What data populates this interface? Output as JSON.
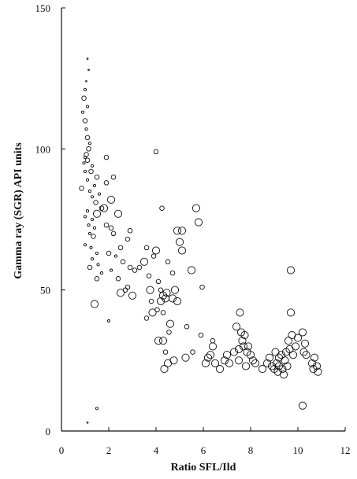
{
  "chart_data": {
    "type": "scatter",
    "xlabel": "Ratio SFL/Ild",
    "ylabel": "Gamma ray  (SGR)  API units",
    "xlim": [
      0,
      12
    ],
    "ylim": [
      0,
      150
    ],
    "x_ticks": [
      0,
      2,
      4,
      6,
      8,
      10,
      12
    ],
    "y_ticks": [
      0,
      50,
      100,
      150
    ],
    "x_tick_labels": [
      "0",
      "2",
      "4",
      "6",
      "8",
      "10",
      "12"
    ],
    "y_tick_labels": [
      "0",
      "50",
      "100",
      "150"
    ],
    "grid": false,
    "legend": false,
    "marker": "open-circle (size varies)",
    "points": [
      {
        "x": 1.1,
        "y": 132,
        "s": 1
      },
      {
        "x": 1.15,
        "y": 128,
        "s": 1
      },
      {
        "x": 1.05,
        "y": 124,
        "s": 1
      },
      {
        "x": 1.0,
        "y": 121,
        "s": 2
      },
      {
        "x": 0.95,
        "y": 118,
        "s": 3
      },
      {
        "x": 1.1,
        "y": 115,
        "s": 2
      },
      {
        "x": 0.9,
        "y": 113,
        "s": 2
      },
      {
        "x": 1.0,
        "y": 110,
        "s": 3
      },
      {
        "x": 1.05,
        "y": 107,
        "s": 2
      },
      {
        "x": 1.1,
        "y": 104,
        "s": 3
      },
      {
        "x": 1.2,
        "y": 102,
        "s": 2
      },
      {
        "x": 1.15,
        "y": 100,
        "s": 3
      },
      {
        "x": 1.05,
        "y": 98,
        "s": 3
      },
      {
        "x": 1.0,
        "y": 97,
        "s": 2
      },
      {
        "x": 1.1,
        "y": 96,
        "s": 3
      },
      {
        "x": 0.95,
        "y": 95,
        "s": 2
      },
      {
        "x": 1.3,
        "y": 94,
        "s": 2
      },
      {
        "x": 1.0,
        "y": 92,
        "s": 2
      },
      {
        "x": 1.25,
        "y": 92,
        "s": 3
      },
      {
        "x": 1.5,
        "y": 90,
        "s": 3
      },
      {
        "x": 1.1,
        "y": 89,
        "s": 2
      },
      {
        "x": 1.4,
        "y": 87,
        "s": 2
      },
      {
        "x": 0.85,
        "y": 86,
        "s": 3
      },
      {
        "x": 1.2,
        "y": 85,
        "s": 2
      },
      {
        "x": 1.6,
        "y": 84,
        "s": 2
      },
      {
        "x": 1.3,
        "y": 83,
        "s": 2
      },
      {
        "x": 1.45,
        "y": 81,
        "s": 3
      },
      {
        "x": 1.7,
        "y": 79,
        "s": 3
      },
      {
        "x": 1.1,
        "y": 78,
        "s": 2
      },
      {
        "x": 1.5,
        "y": 77,
        "s": 4
      },
      {
        "x": 1.0,
        "y": 76,
        "s": 2
      },
      {
        "x": 1.3,
        "y": 75,
        "s": 2
      },
      {
        "x": 1.15,
        "y": 73,
        "s": 2
      },
      {
        "x": 1.4,
        "y": 72,
        "s": 2
      },
      {
        "x": 1.2,
        "y": 70,
        "s": 2
      },
      {
        "x": 1.35,
        "y": 69,
        "s": 3
      },
      {
        "x": 1.0,
        "y": 66,
        "s": 2
      },
      {
        "x": 1.25,
        "y": 65,
        "s": 2
      },
      {
        "x": 1.5,
        "y": 63,
        "s": 2
      },
      {
        "x": 1.3,
        "y": 61,
        "s": 2
      },
      {
        "x": 1.55,
        "y": 59,
        "s": 2
      },
      {
        "x": 1.2,
        "y": 58,
        "s": 3
      },
      {
        "x": 1.7,
        "y": 56,
        "s": 2
      },
      {
        "x": 1.5,
        "y": 54,
        "s": 3
      },
      {
        "x": 1.4,
        "y": 45,
        "s": 4
      },
      {
        "x": 1.5,
        "y": 8,
        "s": 2
      },
      {
        "x": 1.1,
        "y": 3,
        "s": 1
      },
      {
        "x": 1.9,
        "y": 97,
        "s": 3
      },
      {
        "x": 2.2,
        "y": 90,
        "s": 3
      },
      {
        "x": 1.9,
        "y": 88,
        "s": 3
      },
      {
        "x": 2.1,
        "y": 82,
        "s": 4
      },
      {
        "x": 1.8,
        "y": 79,
        "s": 4
      },
      {
        "x": 2.4,
        "y": 77,
        "s": 4
      },
      {
        "x": 1.9,
        "y": 73,
        "s": 3
      },
      {
        "x": 2.1,
        "y": 72,
        "s": 3
      },
      {
        "x": 2.2,
        "y": 70,
        "s": 3
      },
      {
        "x": 2.5,
        "y": 65,
        "s": 3
      },
      {
        "x": 2.0,
        "y": 63,
        "s": 3
      },
      {
        "x": 2.3,
        "y": 62,
        "s": 2
      },
      {
        "x": 2.6,
        "y": 60,
        "s": 3
      },
      {
        "x": 2.9,
        "y": 58,
        "s": 3
      },
      {
        "x": 2.1,
        "y": 57,
        "s": 2
      },
      {
        "x": 2.4,
        "y": 54,
        "s": 3
      },
      {
        "x": 2.8,
        "y": 51,
        "s": 3
      },
      {
        "x": 2.5,
        "y": 49,
        "s": 4
      },
      {
        "x": 2.0,
        "y": 39,
        "s": 2
      },
      {
        "x": 2.7,
        "y": 50,
        "s": 3
      },
      {
        "x": 2.9,
        "y": 71,
        "s": 3
      },
      {
        "x": 2.8,
        "y": 68,
        "s": 3
      },
      {
        "x": 3.0,
        "y": 48,
        "s": 4
      },
      {
        "x": 3.1,
        "y": 57,
        "s": 3
      },
      {
        "x": 3.3,
        "y": 58,
        "s": 3
      },
      {
        "x": 3.5,
        "y": 60,
        "s": 4
      },
      {
        "x": 3.6,
        "y": 65,
        "s": 3
      },
      {
        "x": 3.7,
        "y": 55,
        "s": 3
      },
      {
        "x": 3.6,
        "y": 40,
        "s": 3
      },
      {
        "x": 3.75,
        "y": 50,
        "s": 4
      },
      {
        "x": 3.8,
        "y": 46,
        "s": 3
      },
      {
        "x": 3.85,
        "y": 42,
        "s": 4
      },
      {
        "x": 3.9,
        "y": 62,
        "s": 3
      },
      {
        "x": 4.0,
        "y": 64,
        "s": 4
      },
      {
        "x": 4.0,
        "y": 99,
        "s": 3
      },
      {
        "x": 4.05,
        "y": 43,
        "s": 3
      },
      {
        "x": 4.1,
        "y": 53,
        "s": 3
      },
      {
        "x": 4.1,
        "y": 32,
        "s": 4
      },
      {
        "x": 4.2,
        "y": 50,
        "s": 3
      },
      {
        "x": 4.2,
        "y": 46,
        "s": 4
      },
      {
        "x": 4.25,
        "y": 79,
        "s": 3
      },
      {
        "x": 4.3,
        "y": 48,
        "s": 4
      },
      {
        "x": 4.3,
        "y": 42,
        "s": 3
      },
      {
        "x": 4.3,
        "y": 32,
        "s": 4
      },
      {
        "x": 4.35,
        "y": 22,
        "s": 4
      },
      {
        "x": 4.4,
        "y": 47,
        "s": 4
      },
      {
        "x": 4.4,
        "y": 28,
        "s": 3
      },
      {
        "x": 4.45,
        "y": 49,
        "s": 4
      },
      {
        "x": 4.5,
        "y": 60,
        "s": 3
      },
      {
        "x": 4.5,
        "y": 24,
        "s": 4
      },
      {
        "x": 4.55,
        "y": 35,
        "s": 3
      },
      {
        "x": 4.6,
        "y": 38,
        "s": 4
      },
      {
        "x": 4.7,
        "y": 56,
        "s": 3
      },
      {
        "x": 4.7,
        "y": 47,
        "s": 4
      },
      {
        "x": 4.75,
        "y": 25,
        "s": 4
      },
      {
        "x": 4.8,
        "y": 50,
        "s": 4
      },
      {
        "x": 4.9,
        "y": 71,
        "s": 4
      },
      {
        "x": 4.9,
        "y": 46,
        "s": 4
      },
      {
        "x": 5.0,
        "y": 67,
        "s": 4
      },
      {
        "x": 5.1,
        "y": 64,
        "s": 4
      },
      {
        "x": 5.1,
        "y": 71,
        "s": 4
      },
      {
        "x": 5.3,
        "y": 37,
        "s": 3
      },
      {
        "x": 5.25,
        "y": 26,
        "s": 4
      },
      {
        "x": 5.5,
        "y": 57,
        "s": 4
      },
      {
        "x": 5.55,
        "y": 28,
        "s": 3
      },
      {
        "x": 5.7,
        "y": 79,
        "s": 4
      },
      {
        "x": 5.8,
        "y": 74,
        "s": 4
      },
      {
        "x": 5.95,
        "y": 51,
        "s": 3
      },
      {
        "x": 5.9,
        "y": 34,
        "s": 3
      },
      {
        "x": 6.1,
        "y": 24,
        "s": 4
      },
      {
        "x": 6.2,
        "y": 26,
        "s": 4
      },
      {
        "x": 6.3,
        "y": 27,
        "s": 4
      },
      {
        "x": 6.4,
        "y": 30,
        "s": 4
      },
      {
        "x": 6.4,
        "y": 32,
        "s": 3
      },
      {
        "x": 6.5,
        "y": 24,
        "s": 4
      },
      {
        "x": 6.7,
        "y": 22,
        "s": 4
      },
      {
        "x": 6.9,
        "y": 25,
        "s": 4
      },
      {
        "x": 7.0,
        "y": 27,
        "s": 4
      },
      {
        "x": 7.1,
        "y": 24,
        "s": 4
      },
      {
        "x": 7.3,
        "y": 28,
        "s": 4
      },
      {
        "x": 7.4,
        "y": 37,
        "s": 4
      },
      {
        "x": 7.5,
        "y": 25,
        "s": 4
      },
      {
        "x": 7.5,
        "y": 29,
        "s": 4
      },
      {
        "x": 7.55,
        "y": 42,
        "s": 4
      },
      {
        "x": 7.6,
        "y": 35,
        "s": 4
      },
      {
        "x": 7.65,
        "y": 32,
        "s": 4
      },
      {
        "x": 7.7,
        "y": 30,
        "s": 4
      },
      {
        "x": 7.75,
        "y": 34,
        "s": 4
      },
      {
        "x": 7.8,
        "y": 23,
        "s": 4
      },
      {
        "x": 7.85,
        "y": 28,
        "s": 4
      },
      {
        "x": 7.9,
        "y": 30,
        "s": 4
      },
      {
        "x": 8.0,
        "y": 27,
        "s": 4
      },
      {
        "x": 8.1,
        "y": 25,
        "s": 4
      },
      {
        "x": 8.2,
        "y": 24,
        "s": 4
      },
      {
        "x": 8.5,
        "y": 22,
        "s": 4
      },
      {
        "x": 8.7,
        "y": 24,
        "s": 4
      },
      {
        "x": 8.8,
        "y": 26,
        "s": 4
      },
      {
        "x": 8.9,
        "y": 23,
        "s": 4
      },
      {
        "x": 9.0,
        "y": 22,
        "s": 4
      },
      {
        "x": 9.05,
        "y": 28,
        "s": 4
      },
      {
        "x": 9.1,
        "y": 24,
        "s": 4
      },
      {
        "x": 9.15,
        "y": 21,
        "s": 4
      },
      {
        "x": 9.2,
        "y": 26,
        "s": 4
      },
      {
        "x": 9.2,
        "y": 23,
        "s": 4
      },
      {
        "x": 9.3,
        "y": 27,
        "s": 4
      },
      {
        "x": 9.35,
        "y": 22,
        "s": 4
      },
      {
        "x": 9.4,
        "y": 20,
        "s": 4
      },
      {
        "x": 9.45,
        "y": 25,
        "s": 4
      },
      {
        "x": 9.5,
        "y": 28,
        "s": 4
      },
      {
        "x": 9.55,
        "y": 23,
        "s": 4
      },
      {
        "x": 9.6,
        "y": 32,
        "s": 4
      },
      {
        "x": 9.65,
        "y": 29,
        "s": 4
      },
      {
        "x": 9.7,
        "y": 57,
        "s": 4
      },
      {
        "x": 9.7,
        "y": 42,
        "s": 4
      },
      {
        "x": 9.75,
        "y": 34,
        "s": 4
      },
      {
        "x": 9.8,
        "y": 27,
        "s": 4
      },
      {
        "x": 9.9,
        "y": 30,
        "s": 4
      },
      {
        "x": 10.0,
        "y": 33,
        "s": 4
      },
      {
        "x": 10.2,
        "y": 35,
        "s": 4
      },
      {
        "x": 10.25,
        "y": 28,
        "s": 4
      },
      {
        "x": 10.3,
        "y": 31,
        "s": 4
      },
      {
        "x": 10.35,
        "y": 27,
        "s": 4
      },
      {
        "x": 10.6,
        "y": 24,
        "s": 4
      },
      {
        "x": 10.65,
        "y": 22,
        "s": 4
      },
      {
        "x": 10.7,
        "y": 26,
        "s": 4
      },
      {
        "x": 10.8,
        "y": 23,
        "s": 4
      },
      {
        "x": 10.85,
        "y": 21,
        "s": 4
      },
      {
        "x": 10.2,
        "y": 9,
        "s": 4
      }
    ]
  }
}
